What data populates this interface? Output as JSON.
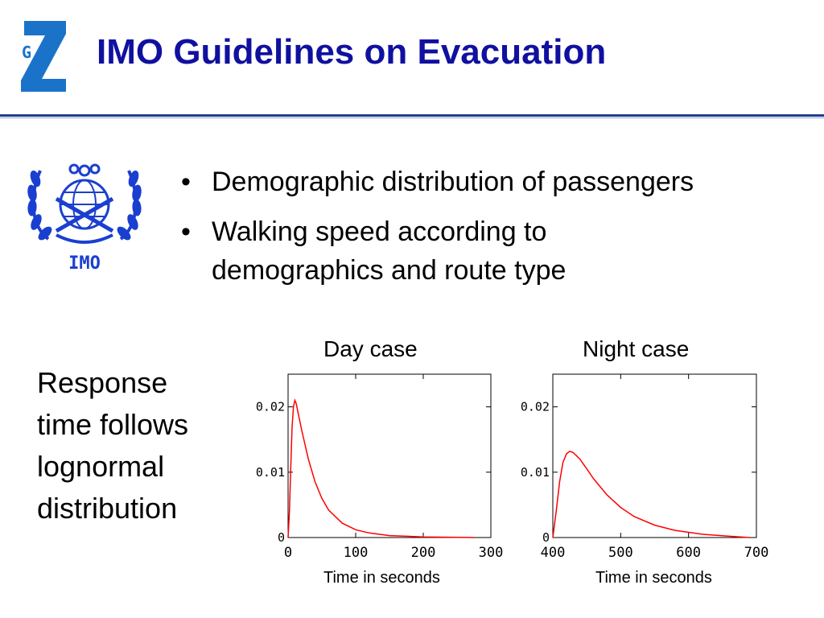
{
  "header": {
    "logo_text": "G",
    "title": "IMO Guidelines on Evacuation"
  },
  "emblem": {
    "label": "IMO"
  },
  "bullets": [
    {
      "lines": [
        "Demographic distribution of passengers"
      ]
    },
    {
      "lines": [
        "Walking speed according to",
        "demographics and route type"
      ]
    }
  ],
  "response_text": [
    "Response",
    "time follows",
    "lognormal",
    "distribution"
  ],
  "colors": {
    "title": "#1010a0",
    "curve": "#ff0000",
    "rule": "#1e3d8c",
    "logo": "#1a73c9"
  },
  "chart_data": [
    {
      "type": "line",
      "title": "Day case",
      "xlabel": "Time in seconds",
      "ylabel": "",
      "xlim": [
        0,
        300
      ],
      "ylim": [
        0,
        0.025
      ],
      "x_ticks": [
        "0",
        "100",
        "200",
        "300"
      ],
      "y_ticks": [
        "0",
        "0.01",
        "0.02"
      ],
      "series": [
        {
          "x": [
            0,
            2,
            4,
            6,
            8,
            10,
            12,
            15,
            20,
            30,
            40,
            50,
            60,
            80,
            100,
            120,
            150,
            200,
            250,
            275
          ],
          "y": [
            0,
            0.004,
            0.011,
            0.017,
            0.02,
            0.021,
            0.0205,
            0.019,
            0.0165,
            0.012,
            0.0085,
            0.006,
            0.0042,
            0.0022,
            0.0012,
            0.0007,
            0.0003,
            0.0001,
            3e-05,
            0.0
          ]
        }
      ]
    },
    {
      "type": "line",
      "title": "Night case",
      "xlabel": "Time in seconds",
      "ylabel": "",
      "xlim": [
        400,
        700
      ],
      "ylim": [
        0,
        0.025
      ],
      "x_ticks": [
        "400",
        "500",
        "600",
        "700"
      ],
      "y_ticks": [
        "0",
        "0.01",
        "0.02"
      ],
      "series": [
        {
          "x": [
            400,
            405,
            410,
            415,
            420,
            425,
            430,
            440,
            450,
            460,
            480,
            500,
            520,
            550,
            580,
            620,
            660,
            690
          ],
          "y": [
            0,
            0.004,
            0.0085,
            0.0115,
            0.0128,
            0.0132,
            0.013,
            0.012,
            0.0105,
            0.009,
            0.0065,
            0.0046,
            0.0032,
            0.0019,
            0.0011,
            0.0005,
            0.0002,
            0.0
          ]
        }
      ]
    }
  ]
}
